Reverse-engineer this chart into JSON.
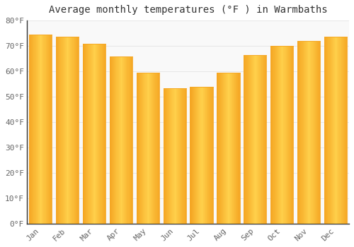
{
  "title": "Average monthly temperatures (°F ) in Warmbaths",
  "months": [
    "Jan",
    "Feb",
    "Mar",
    "Apr",
    "May",
    "Jun",
    "Jul",
    "Aug",
    "Sep",
    "Oct",
    "Nov",
    "Dec"
  ],
  "values": [
    74.5,
    73.5,
    71.0,
    66.0,
    59.5,
    53.5,
    54.0,
    59.5,
    66.5,
    70.0,
    72.0,
    73.5
  ],
  "bar_color_left": "#F5A623",
  "bar_color_center": "#FFD04B",
  "bar_color_right": "#F5A623",
  "ylim": [
    0,
    80
  ],
  "yticks": [
    0,
    10,
    20,
    30,
    40,
    50,
    60,
    70,
    80
  ],
  "ytick_labels": [
    "0°F",
    "10°F",
    "20°F",
    "30°F",
    "40°F",
    "50°F",
    "60°F",
    "70°F",
    "80°F"
  ],
  "background_color": "#ffffff",
  "plot_bg_color": "#f9f9f9",
  "grid_color": "#e8e8e8",
  "title_fontsize": 10,
  "tick_fontsize": 8,
  "bar_width": 0.85
}
